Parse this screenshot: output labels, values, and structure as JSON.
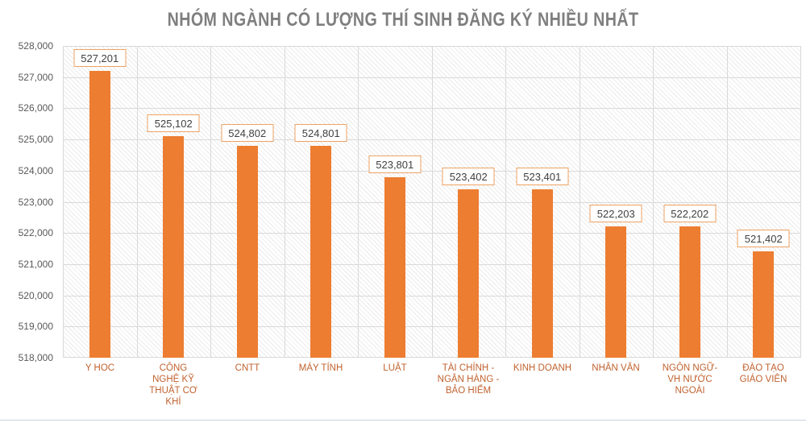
{
  "title": "NHÓM NGÀNH CÓ LƯỢNG THÍ SINH ĐĂNG KÝ NHIỀU NHẤT",
  "chart_data": {
    "type": "bar",
    "title": "NHÓM NGÀNH CÓ LƯỢNG THÍ SINH ĐĂNG KÝ NHIỀU NHẤT",
    "categories": [
      "Y HOC",
      "CÔNG NGHỆ KỸ THUẬT CƠ KHÍ",
      "CNTT",
      "MÁY TÍNH",
      "LUẬT",
      "TÀI CHÍNH - NGÂN HÀNG - BẢO HIỂM",
      "KINH DOANH",
      "NHÂN VĂN",
      "NGÔN NGỮ- VH NƯỚC NGOÀI",
      "ĐÀO TẠO GIÁO VIÊN"
    ],
    "category_lines": [
      [
        "Y HOC"
      ],
      [
        "CÔNG",
        "NGHỆ KỸ",
        "THUẬT CƠ",
        "KHÍ"
      ],
      [
        "CNTT"
      ],
      [
        "MÁY TÍNH"
      ],
      [
        "LUẬT"
      ],
      [
        "TÀI CHÍNH -",
        "NGÂN HÀNG -",
        "BẢO HIỂM"
      ],
      [
        "KINH DOANH"
      ],
      [
        "NHÂN VĂN"
      ],
      [
        "NGÔN NGỮ-",
        "VH NƯỚC",
        "NGOÀI"
      ],
      [
        "ĐÀO TẠO",
        "GIÁO VIÊN"
      ]
    ],
    "values": [
      527201,
      525102,
      524802,
      524801,
      523801,
      523402,
      523401,
      522203,
      522202,
      521402
    ],
    "value_labels": [
      "527,201",
      "525,102",
      "524,802",
      "524,801",
      "523,801",
      "523,402",
      "523,401",
      "522,203",
      "522,202",
      "521,402"
    ],
    "xlabel": "",
    "ylabel": "",
    "ylim": [
      518000,
      528000
    ],
    "ytick_step": 1000,
    "ytick_labels": [
      "518,000",
      "519,000",
      "520,000",
      "521,000",
      "522,000",
      "523,000",
      "524,000",
      "525,000",
      "526,000",
      "527,000",
      "528,000"
    ],
    "grid": true,
    "legend": false
  },
  "colors": {
    "bar": "#ED7D31",
    "value_label_border": "#EDA263",
    "value_label_text": "#404040",
    "category_text": "#C0622F",
    "title_text": "#7F7F7F",
    "axis_text": "#595959",
    "gridline": "#D9D9D9",
    "bottom_border": "#C9CFDA"
  }
}
